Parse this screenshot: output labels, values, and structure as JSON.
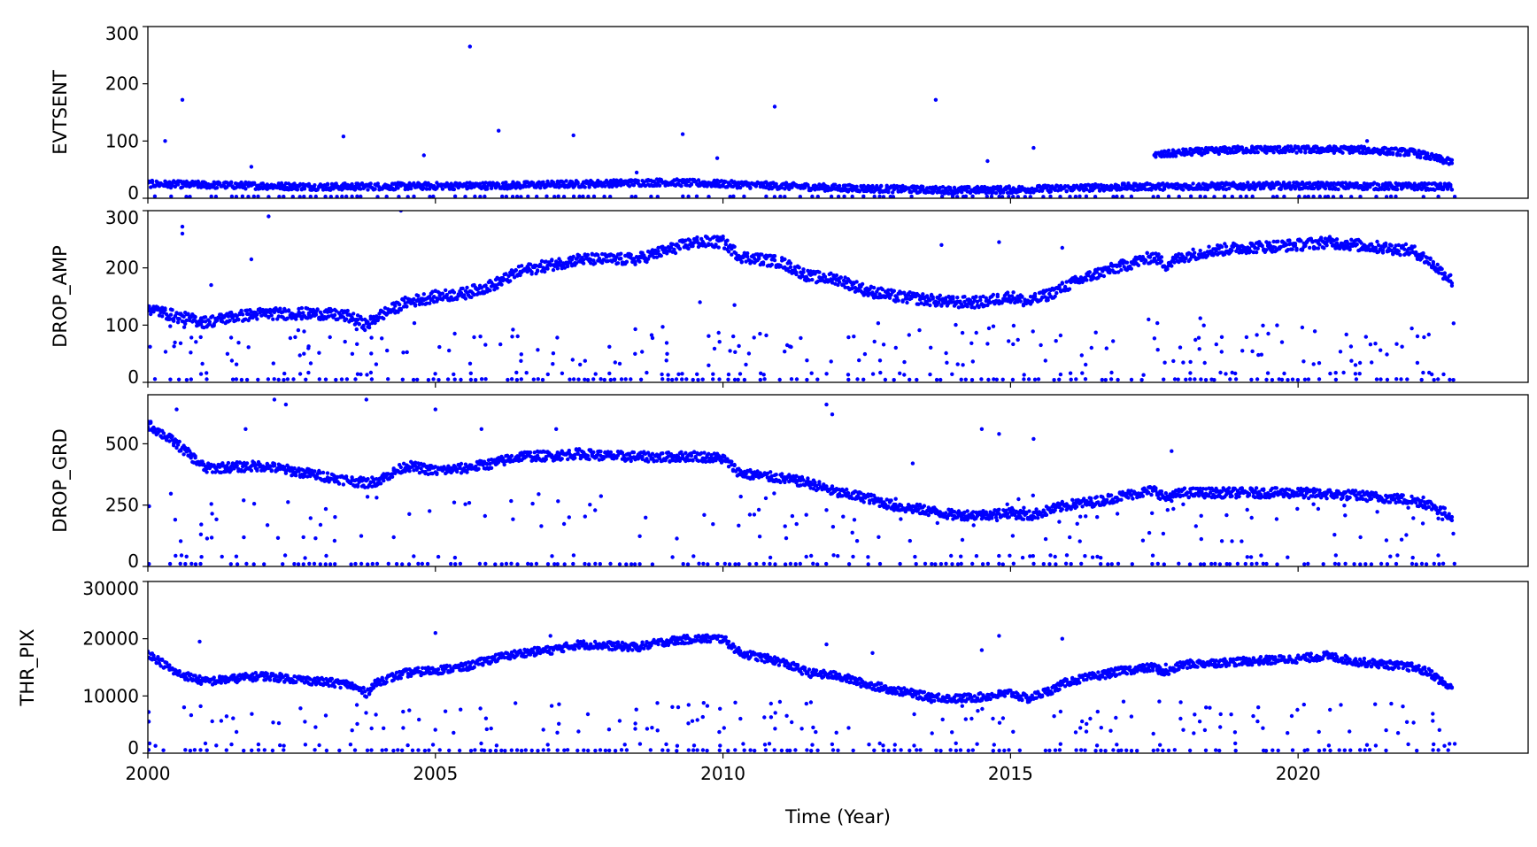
{
  "chart_data": {
    "type": "scatter",
    "xlabel": "Time (Year)",
    "xlim": [
      2000,
      2024
    ],
    "xticks": [
      "2000",
      "2005",
      "2010",
      "2015",
      "2020"
    ],
    "color": "#0000ff",
    "panels": [
      {
        "ylabel": "EVTSENT",
        "ylim": [
          0,
          300
        ],
        "yticks": [
          "0",
          "100",
          "200",
          "300"
        ],
        "spread": 6,
        "series": [
          {
            "x": [
              2000,
              2003,
              2006,
              2009,
              2010,
              2012,
              2014,
              2015,
              2017,
              2020,
              2022.7
            ],
            "y": [
              25,
              20,
              22,
              28,
              25,
              18,
              14,
              15,
              20,
              22,
              20
            ]
          },
          {
            "x": [
              2017.5,
              2018,
              2019,
              2020,
              2021,
              2022,
              2022.7
            ],
            "y": [
              75,
              80,
              85,
              85,
              85,
              80,
              62
            ]
          }
        ],
        "low": {
          "y": [
            3
          ],
          "range": [
            2000,
            2022.7
          ]
        },
        "outliers": [
          [
            2000.3,
            100
          ],
          [
            2000.6,
            172
          ],
          [
            2001.8,
            55
          ],
          [
            2003.4,
            108
          ],
          [
            2004.8,
            75
          ],
          [
            2005.6,
            265
          ],
          [
            2006.1,
            118
          ],
          [
            2007.4,
            110
          ],
          [
            2009.3,
            112
          ],
          [
            2010.9,
            160
          ],
          [
            2013.7,
            172
          ],
          [
            2014.6,
            65
          ],
          [
            2015.4,
            88
          ],
          [
            2009.9,
            70
          ],
          [
            2008.5,
            45
          ],
          [
            2021.2,
            100
          ]
        ]
      },
      {
        "ylabel": "DROP_AMP",
        "ylim": [
          0,
          300
        ],
        "yticks": [
          "0",
          "100",
          "200",
          "300"
        ],
        "spread": 10,
        "series": [
          {
            "x": [
              2000,
              2000.5,
              2001,
              2001.5,
              2002,
              2003,
              2003.5,
              2003.8,
              2004,
              2004.5,
              2005,
              2005.5,
              2006,
              2006.5,
              2007,
              2007.5,
              2008,
              2008.5,
              2009,
              2009.5,
              2010,
              2010.3,
              2011,
              2011.5,
              2012,
              2012.5,
              2013,
              2013.5,
              2014,
              2014.5,
              2015,
              2015.3,
              2015.7,
              2016,
              2016.5,
              2017,
              2017.5,
              2017.7,
              2018,
              2018.5,
              2019,
              2020,
              2020.5,
              2021,
              2021.5,
              2022,
              2022.3,
              2022.7
            ],
            "y": [
              130,
              115,
              105,
              115,
              120,
              120,
              115,
              100,
              115,
              140,
              150,
              155,
              170,
              195,
              205,
              215,
              215,
              215,
              230,
              245,
              245,
              220,
              210,
              185,
              180,
              160,
              150,
              145,
              140,
              140,
              150,
              140,
              155,
              170,
              190,
              205,
              220,
              205,
              220,
              230,
              235,
              240,
              245,
              240,
              235,
              230,
              210,
              175
            ]
          }
        ],
        "low": {
          "y": [
            5,
            15,
            35,
            55,
            70,
            90
          ],
          "range": [
            2000,
            2022.7
          ]
        },
        "outliers": [
          [
            2000.6,
            260
          ],
          [
            2000.6,
            272
          ],
          [
            2001.1,
            170
          ],
          [
            2001.8,
            215
          ],
          [
            2002.1,
            290
          ],
          [
            2004.4,
            300
          ],
          [
            2013.8,
            240
          ],
          [
            2014.8,
            245
          ],
          [
            2015.9,
            235
          ],
          [
            2017.4,
            110
          ],
          [
            2018.3,
            112
          ],
          [
            2009.6,
            140
          ],
          [
            2010.2,
            135
          ]
        ]
      },
      {
        "ylabel": "DROP_GRD",
        "ylim": [
          0,
          700
        ],
        "yticks": [
          "0",
          "250",
          "500"
        ],
        "spread": 20,
        "series": [
          {
            "x": [
              2000,
              2000.5,
              2001,
              2002,
              2003,
              2003.5,
              2003.8,
              2004,
              2004.5,
              2005,
              2005.5,
              2006,
              2006.5,
              2007,
              2007.5,
              2008,
              2009,
              2009.5,
              2010,
              2010.3,
              2011,
              2011.5,
              2012,
              2012.5,
              2013,
              2013.5,
              2014,
              2014.5,
              2015,
              2015.3,
              2016,
              2016.5,
              2017,
              2017.5,
              2017.7,
              2018,
              2019,
              2020,
              2021,
              2022,
              2022.3,
              2022.7
            ],
            "y": [
              580,
              500,
              400,
              410,
              370,
              350,
              340,
              350,
              410,
              390,
              400,
              420,
              450,
              450,
              460,
              450,
              445,
              450,
              440,
              380,
              360,
              340,
              300,
              280,
              245,
              230,
              210,
              210,
              220,
              205,
              250,
              265,
              290,
              310,
              280,
              300,
              300,
              300,
              290,
              270,
              250,
              200
            ]
          }
        ],
        "low": {
          "y": [
            10,
            40,
            120,
            190,
            260
          ],
          "range": [
            2000,
            2022.7
          ]
        },
        "outliers": [
          [
            2000.5,
            640
          ],
          [
            2001.7,
            560
          ],
          [
            2002.2,
            680
          ],
          [
            2002.4,
            660
          ],
          [
            2003.8,
            680
          ],
          [
            2005,
            640
          ],
          [
            2005.8,
            560
          ],
          [
            2007.1,
            560
          ],
          [
            2011.8,
            660
          ],
          [
            2011.9,
            620
          ],
          [
            2014.5,
            560
          ],
          [
            2014.8,
            540
          ],
          [
            2015.4,
            520
          ],
          [
            2017.8,
            470
          ],
          [
            2013.3,
            420
          ]
        ]
      },
      {
        "ylabel": "THR_PIX",
        "ylim": [
          0,
          30000
        ],
        "yticks": [
          "0",
          "10000",
          "20000",
          "30000"
        ],
        "spread": 700,
        "series": [
          {
            "x": [
              2000,
              2000.5,
              2001,
              2001.5,
              2002,
              2003,
              2003.5,
              2003.8,
              2004,
              2004.5,
              2005,
              2005.5,
              2006,
              2006.5,
              2007,
              2007.5,
              2008,
              2008.5,
              2009,
              2009.5,
              2010,
              2010.3,
              2011,
              2011.5,
              2012,
              2012.5,
              2013,
              2013.5,
              2014,
              2014.5,
              2015,
              2015.3,
              2015.7,
              2016,
              2016.5,
              2017,
              2017.5,
              2017.7,
              2018,
              2019,
              2020,
              2020.5,
              2021,
              2022,
              2022.3,
              2022.7
            ],
            "y": [
              17500,
              14000,
              12500,
              13000,
              13500,
              12500,
              12000,
              10500,
              12500,
              14000,
              14500,
              15000,
              16500,
              17500,
              18000,
              19000,
              18800,
              18500,
              19500,
              20000,
              20000,
              17500,
              16000,
              14000,
              13500,
              12000,
              11000,
              10000,
              9500,
              9800,
              10500,
              9500,
              11000,
              12500,
              13500,
              14500,
              15000,
              14000,
              15500,
              16000,
              16500,
              17000,
              16000,
              15000,
              14000,
              11000
            ]
          }
        ],
        "low": {
          "y": [
            500,
            1500,
            4000,
            6000,
            8000
          ],
          "range": [
            2000,
            2022.7
          ]
        },
        "outliers": [
          [
            2000.9,
            19500
          ],
          [
            2005,
            21000
          ],
          [
            2007,
            20500
          ],
          [
            2011.8,
            19000
          ],
          [
            2012.6,
            17500
          ],
          [
            2014.5,
            18000
          ],
          [
            2014.8,
            20500
          ],
          [
            2015.9,
            20000
          ],
          [
            2017.7,
            15500
          ],
          [
            2018.4,
            8000
          ]
        ]
      }
    ]
  }
}
